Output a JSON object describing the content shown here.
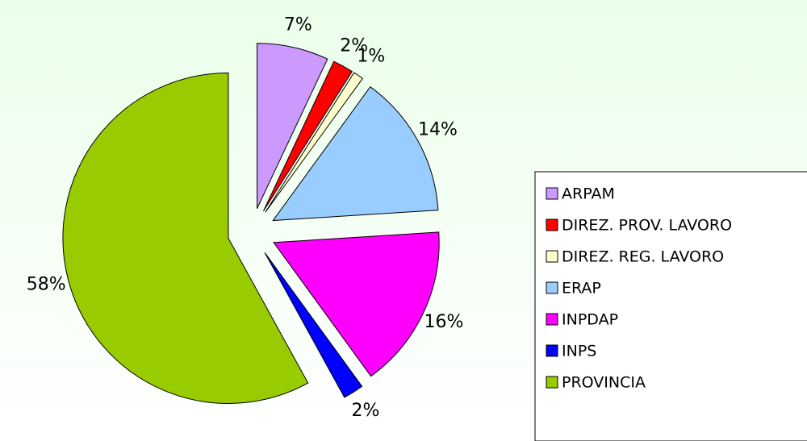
{
  "chart_data": {
    "type": "pie",
    "categories": [
      "ARPAM",
      "DIREZ. PROV. LAVORO",
      "DIREZ. REG. LAVORO",
      "ERAP",
      "INPDAP",
      "INPS",
      "PROVINCIA"
    ],
    "values": [
      7,
      2,
      1,
      14,
      16,
      2,
      58
    ],
    "value_labels": [
      "7%",
      "2%",
      "1%",
      "14%",
      "16%",
      "2%",
      "58%"
    ],
    "colors": [
      "#cc99ff",
      "#ff0000",
      "#ffffcc",
      "#99ccff",
      "#ff00ff",
      "#0000ff",
      "#99cc00"
    ],
    "legend": "right",
    "exploded": true
  }
}
